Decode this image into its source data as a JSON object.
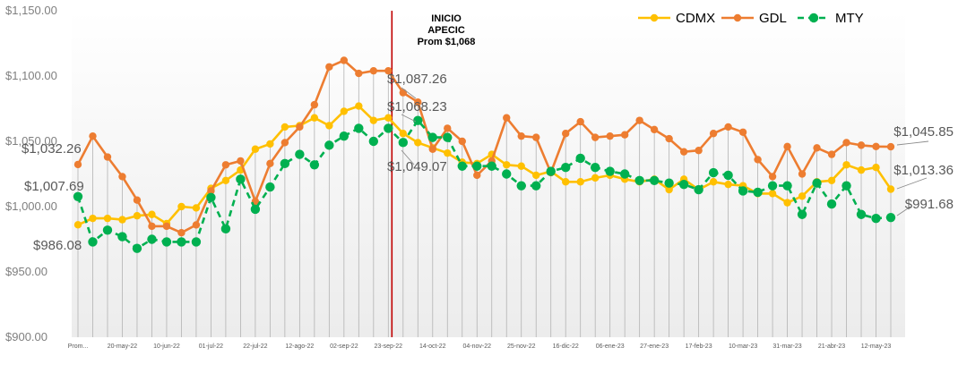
{
  "chart_data": {
    "type": "line",
    "title": "",
    "xlabel": "",
    "ylabel": "",
    "ylim": [
      900,
      1150
    ],
    "yticks": [
      900,
      950,
      1000,
      1050,
      1100,
      1150
    ],
    "ytick_labels": [
      "$900.00",
      "$950.00",
      "$1,000.00",
      "$1,050.00",
      "$1,100.00",
      "$1,150.00"
    ],
    "grid": false,
    "legend_position": "top-right",
    "x_tick_labels": [
      {
        "index": 0,
        "label": "Prom..."
      },
      {
        "index": 3,
        "label": "20-may-22"
      },
      {
        "index": 6,
        "label": "10-jun-22"
      },
      {
        "index": 9,
        "label": "01-jul-22"
      },
      {
        "index": 12,
        "label": "22-jul-22"
      },
      {
        "index": 15,
        "label": "12-ago-22"
      },
      {
        "index": 18,
        "label": "02-sep-22"
      },
      {
        "index": 21,
        "label": "23-sep-22"
      },
      {
        "index": 24,
        "label": "14-oct-22"
      },
      {
        "index": 27,
        "label": "04-nov-22"
      },
      {
        "index": 30,
        "label": "25-nov-22"
      },
      {
        "index": 33,
        "label": "16-dic-22"
      },
      {
        "index": 36,
        "label": "06-ene-23"
      },
      {
        "index": 39,
        "label": "27-ene-23"
      },
      {
        "index": 42,
        "label": "17-feb-23"
      },
      {
        "index": 45,
        "label": "10-mar-23"
      },
      {
        "index": 48,
        "label": "31-mar-23"
      },
      {
        "index": 51,
        "label": "21-abr-23"
      },
      {
        "index": 54,
        "label": "12-may-23"
      }
    ],
    "series": [
      {
        "name": "CDMX",
        "color": "#ffc000",
        "style": "solid",
        "values": [
          986.08,
          991,
          991,
          990,
          993,
          994,
          987,
          1000,
          999,
          1014,
          1020,
          1028,
          1044,
          1048,
          1061,
          1062,
          1068,
          1062,
          1073,
          1077,
          1066,
          1068,
          1056,
          1049,
          1045,
          1041,
          1034,
          1033,
          1040,
          1032,
          1031,
          1024,
          1027,
          1019,
          1019,
          1022,
          1024,
          1021,
          1019,
          1021,
          1013,
          1021,
          1013,
          1019,
          1017,
          1016,
          1010,
          1010,
          1003,
          1008,
          1019,
          1020,
          1032,
          1028,
          1030,
          1013.36
        ]
      },
      {
        "name": "GDL",
        "color": "#ed7d31",
        "style": "solid",
        "values": [
          1032.26,
          1054,
          1038,
          1023,
          1005,
          985,
          985,
          980,
          986,
          1012,
          1032,
          1035,
          1004,
          1033,
          1049,
          1061,
          1078,
          1107,
          1112,
          1102,
          1104,
          1104,
          1087.26,
          1080,
          1044,
          1060,
          1050,
          1024,
          1035,
          1068,
          1054,
          1053,
          1026,
          1056,
          1065,
          1053,
          1054,
          1055,
          1066,
          1059,
          1052,
          1042,
          1043,
          1056,
          1061,
          1057,
          1036,
          1023,
          1046,
          1025,
          1045,
          1040,
          1049,
          1047,
          1046,
          1045.85
        ]
      },
      {
        "name": "MTY",
        "color": "#00b050",
        "style": "dashed",
        "values": [
          1007.69,
          973,
          982,
          977,
          968,
          975,
          973,
          973,
          973,
          1007,
          983,
          1021,
          998,
          1015,
          1033,
          1040,
          1032,
          1047,
          1054,
          1060,
          1050,
          1060,
          1049.07,
          1066,
          1053,
          1053,
          1031,
          1031,
          1031,
          1025,
          1016,
          1016,
          1027,
          1030,
          1037,
          1030,
          1027,
          1025,
          1020,
          1020,
          1018,
          1017,
          1013,
          1026,
          1024,
          1012,
          1011,
          1016,
          1016,
          994,
          1018,
          1002,
          1016,
          994,
          991,
          991.68
        ]
      }
    ],
    "event": {
      "index": 21,
      "lines": [
        "INICIO",
        "APECIC",
        "Prom $1,068"
      ],
      "color": "#c00000"
    },
    "annotations": [
      {
        "text": "$1,032.26"
      },
      {
        "text": "$1,007.69"
      },
      {
        "text": "$986.08"
      },
      {
        "text": "$1,087.26"
      },
      {
        "text": "$1,068.23"
      },
      {
        "text": "$1,049.07"
      },
      {
        "text": "$1,045.85"
      },
      {
        "text": "$1,013.36"
      },
      {
        "text": "$991.68"
      }
    ]
  }
}
